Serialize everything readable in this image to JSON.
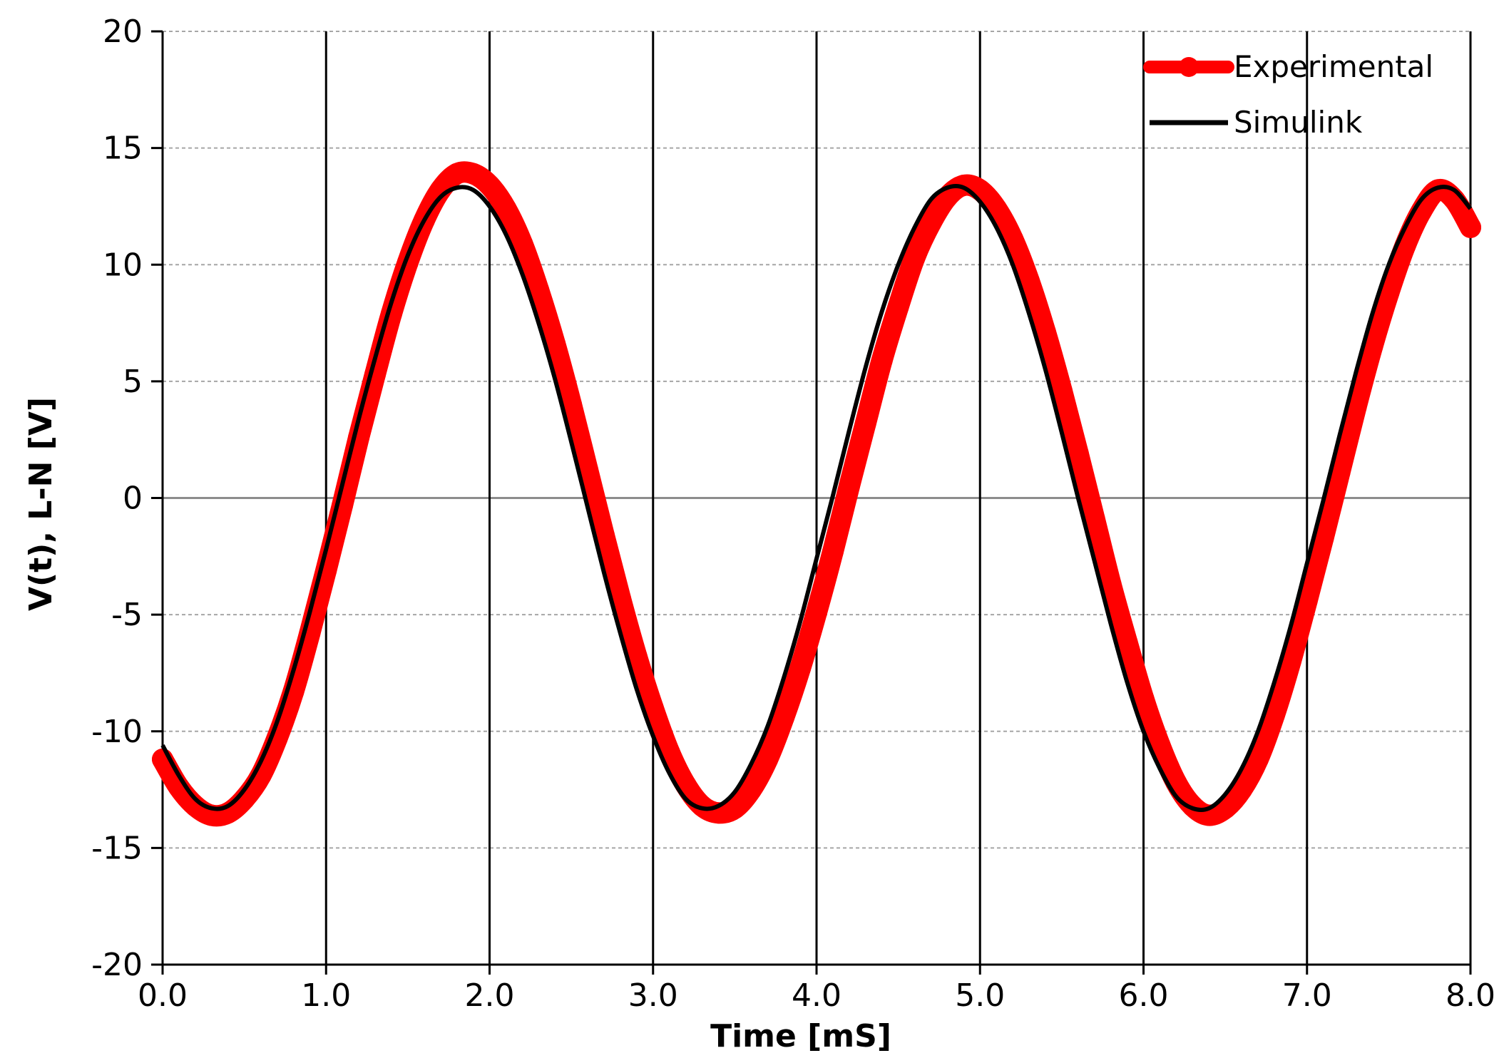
{
  "chart_data": {
    "type": "line",
    "title": "",
    "xlabel": "Time [mS]",
    "ylabel": "V(t), L-N [V]",
    "xlim": [
      0.0,
      8.0
    ],
    "ylim": [
      -20,
      20
    ],
    "x_ticks": [
      "0.0",
      "1.0",
      "2.0",
      "3.0",
      "4.0",
      "5.0",
      "6.0",
      "7.0",
      "8.0"
    ],
    "y_ticks": [
      "20",
      "15",
      "10",
      "5",
      "0",
      "-5",
      "-10",
      "-15",
      "-20"
    ],
    "grid": {
      "x_major": "solid",
      "y_major": "dashed"
    },
    "legend_position": "top-right",
    "series": [
      {
        "name": "Experimental",
        "color": "#ff0000",
        "marker": "circle",
        "x": [
          0.0,
          0.1,
          0.2,
          0.3,
          0.4,
          0.5,
          0.6,
          0.7,
          0.8,
          0.9,
          1.0,
          1.1,
          1.2,
          1.3,
          1.4,
          1.5,
          1.6,
          1.7,
          1.8,
          1.9,
          2.0,
          2.1,
          2.2,
          2.3,
          2.4,
          2.5,
          2.6,
          2.7,
          2.8,
          2.9,
          3.0,
          3.1,
          3.2,
          3.3,
          3.4,
          3.5,
          3.6,
          3.7,
          3.8,
          3.9,
          4.0,
          4.1,
          4.2,
          4.3,
          4.4,
          4.5,
          4.6,
          4.7,
          4.8,
          4.9,
          5.0,
          5.1,
          5.2,
          5.3,
          5.4,
          5.5,
          5.6,
          5.7,
          5.8,
          5.9,
          6.0,
          6.1,
          6.2,
          6.3,
          6.4,
          6.5,
          6.6,
          6.7,
          6.8,
          6.9,
          7.0,
          7.1,
          7.2,
          7.3,
          7.4,
          7.5,
          7.6,
          7.7,
          7.8,
          7.9,
          8.0
        ],
        "y": [
          -11.2,
          -12.4,
          -13.2,
          -13.6,
          -13.5,
          -12.9,
          -11.9,
          -10.3,
          -8.3,
          -5.8,
          -3.1,
          -0.3,
          2.6,
          5.3,
          7.9,
          10.1,
          11.9,
          13.2,
          13.9,
          13.9,
          13.4,
          12.4,
          10.9,
          8.9,
          6.6,
          4.0,
          1.2,
          -1.6,
          -4.3,
          -6.8,
          -9.0,
          -10.9,
          -12.3,
          -13.2,
          -13.5,
          -13.3,
          -12.5,
          -11.2,
          -9.4,
          -7.3,
          -4.9,
          -2.3,
          0.5,
          3.2,
          5.9,
          8.2,
          10.3,
          11.8,
          12.9,
          13.4,
          13.2,
          12.4,
          11.1,
          9.3,
          7.1,
          4.6,
          1.9,
          -0.9,
          -3.7,
          -6.2,
          -8.6,
          -10.6,
          -12.2,
          -13.2,
          -13.6,
          -13.3,
          -12.5,
          -11.2,
          -9.3,
          -7.0,
          -4.4,
          -1.7,
          1.1,
          3.9,
          6.5,
          8.8,
          10.8,
          12.3,
          13.2,
          12.8,
          11.6
        ]
      },
      {
        "name": "Simulink",
        "color": "#000000",
        "marker": "none",
        "x": [
          0.0,
          0.1,
          0.2,
          0.3,
          0.4,
          0.5,
          0.6,
          0.7,
          0.8,
          0.9,
          1.0,
          1.1,
          1.2,
          1.3,
          1.4,
          1.5,
          1.6,
          1.7,
          1.8,
          1.9,
          2.0,
          2.1,
          2.2,
          2.3,
          2.4,
          2.5,
          2.6,
          2.7,
          2.8,
          2.9,
          3.0,
          3.1,
          3.2,
          3.3,
          3.4,
          3.5,
          3.6,
          3.7,
          3.8,
          3.9,
          4.0,
          4.1,
          4.2,
          4.3,
          4.4,
          4.5,
          4.6,
          4.7,
          4.8,
          4.9,
          5.0,
          5.1,
          5.2,
          5.3,
          5.4,
          5.5,
          5.6,
          5.7,
          5.8,
          5.9,
          6.0,
          6.1,
          6.2,
          6.3,
          6.4,
          6.5,
          6.6,
          6.7,
          6.8,
          6.9,
          7.0,
          7.1,
          7.2,
          7.3,
          7.4,
          7.5,
          7.6,
          7.7,
          7.8,
          7.9,
          8.0
        ],
        "y": [
          -10.6,
          -11.9,
          -12.9,
          -13.3,
          -13.2,
          -12.5,
          -11.3,
          -9.6,
          -7.4,
          -4.9,
          -2.2,
          0.6,
          3.4,
          6.0,
          8.4,
          10.4,
          11.9,
          12.9,
          13.3,
          13.2,
          12.5,
          11.3,
          9.6,
          7.5,
          5.1,
          2.4,
          -0.4,
          -3.2,
          -5.8,
          -8.2,
          -10.2,
          -11.8,
          -12.9,
          -13.3,
          -13.2,
          -12.6,
          -11.4,
          -9.8,
          -7.7,
          -5.3,
          -2.6,
          0.1,
          2.9,
          5.6,
          8.0,
          10.0,
          11.6,
          12.8,
          13.3,
          13.3,
          12.7,
          11.6,
          10.0,
          7.9,
          5.5,
          2.8,
          0.0,
          -2.7,
          -5.4,
          -7.9,
          -10.0,
          -11.6,
          -12.8,
          -13.3,
          -13.3,
          -12.7,
          -11.6,
          -10.0,
          -7.9,
          -5.5,
          -2.8,
          -0.1,
          2.7,
          5.4,
          7.9,
          10.0,
          11.6,
          12.8,
          13.3,
          13.2,
          12.4
        ]
      }
    ]
  }
}
